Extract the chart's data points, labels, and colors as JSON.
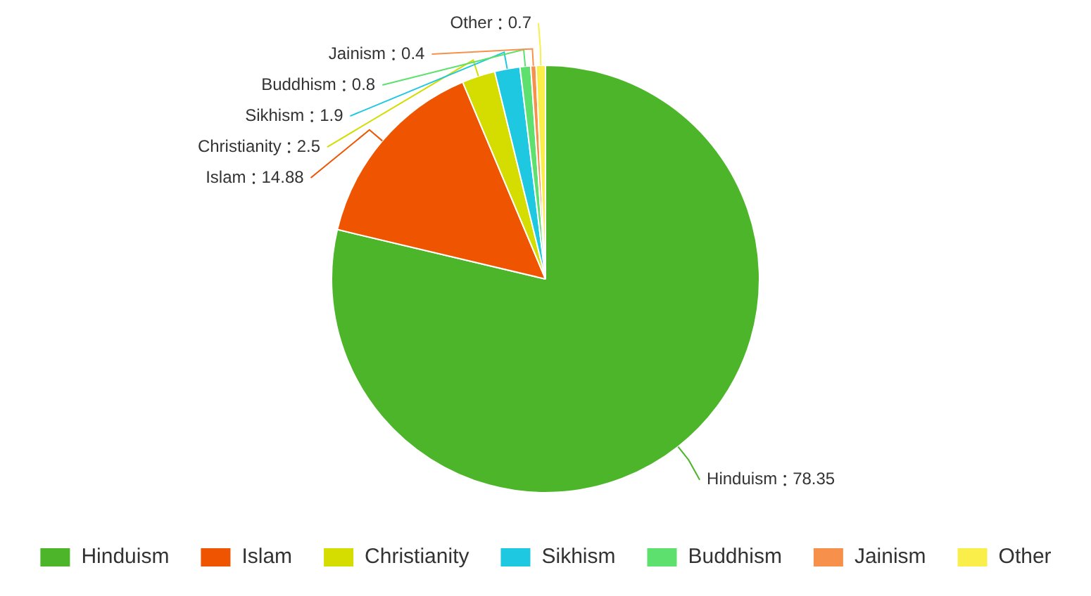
{
  "chart_data": {
    "type": "pie",
    "categories": [
      "Hinduism",
      "Islam",
      "Christianity",
      "Sikhism",
      "Buddhism",
      "Jainism",
      "Other"
    ],
    "values": [
      78.35,
      14.88,
      2.5,
      1.9,
      0.8,
      0.4,
      0.7
    ],
    "colors": [
      "#4db52a",
      "#ef5500",
      "#d4dc00",
      "#1ec8e0",
      "#5de06e",
      "#f7904a",
      "#f9ee4a"
    ],
    "data_labels": true,
    "legend": "bottom"
  }
}
